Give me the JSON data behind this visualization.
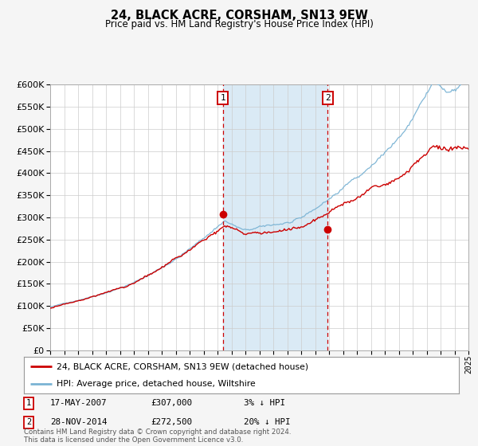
{
  "title": "24, BLACK ACRE, CORSHAM, SN13 9EW",
  "subtitle": "Price paid vs. HM Land Registry's House Price Index (HPI)",
  "legend_line1": "24, BLACK ACRE, CORSHAM, SN13 9EW (detached house)",
  "legend_line2": "HPI: Average price, detached house, Wiltshire",
  "note1_label": "1",
  "note1_date": "17-MAY-2007",
  "note1_price": "£307,000",
  "note1_hpi": "3% ↓ HPI",
  "note2_label": "2",
  "note2_date": "28-NOV-2014",
  "note2_price": "£272,500",
  "note2_hpi": "20% ↓ HPI",
  "footer": "Contains HM Land Registry data © Crown copyright and database right 2024.\nThis data is licensed under the Open Government Licence v3.0.",
  "hpi_color": "#7ab3d4",
  "price_color": "#cc0000",
  "shade_color": "#daeaf5",
  "vline_color": "#cc0000",
  "marker_color": "#cc0000",
  "grid_color": "#cccccc",
  "bg_color": "#f5f5f5",
  "plot_bg": "#ffffff",
  "ylim": [
    0,
    600000
  ],
  "yticks": [
    0,
    50000,
    100000,
    150000,
    200000,
    250000,
    300000,
    350000,
    400000,
    450000,
    500000,
    550000,
    600000
  ],
  "year_start": 1995,
  "year_end": 2025,
  "event1_year": 2007.38,
  "event1_value": 307000,
  "event2_year": 2014.91,
  "event2_value": 272500
}
